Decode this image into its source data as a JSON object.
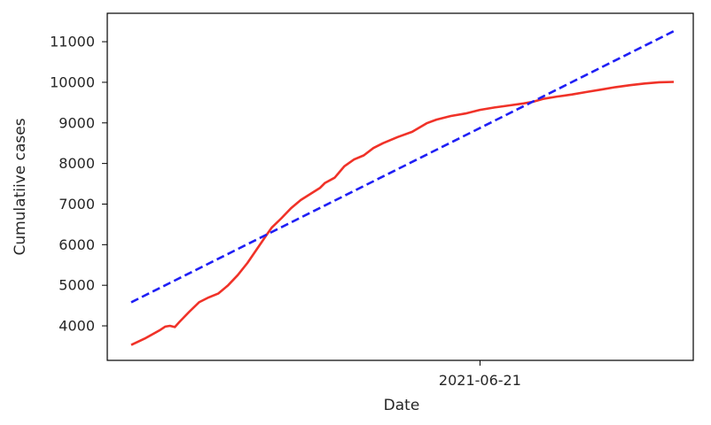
{
  "chart_data": {
    "type": "line",
    "title": "",
    "xlabel": "Date",
    "ylabel": "Cumulatiive cases",
    "x_ticks": [
      {
        "label": "2021-06-21",
        "value": 72
      }
    ],
    "y_ticks": [
      4000,
      5000,
      6000,
      7000,
      8000,
      9000,
      10000,
      11000
    ],
    "ylim": [
      3150,
      11700
    ],
    "grid": false,
    "legend": "none",
    "series": [
      {
        "style": "solid",
        "color": "#f03228",
        "points": [
          [
            0,
            3530
          ],
          [
            3,
            3700
          ],
          [
            6,
            3900
          ],
          [
            7,
            3980
          ],
          [
            8,
            4000
          ],
          [
            9,
            3970
          ],
          [
            10,
            4100
          ],
          [
            12,
            4350
          ],
          [
            14,
            4580
          ],
          [
            16,
            4700
          ],
          [
            18,
            4800
          ],
          [
            20,
            5000
          ],
          [
            22,
            5250
          ],
          [
            24,
            5550
          ],
          [
            26,
            5900
          ],
          [
            28,
            6250
          ],
          [
            29,
            6420
          ],
          [
            31,
            6650
          ],
          [
            33,
            6900
          ],
          [
            35,
            7100
          ],
          [
            37,
            7250
          ],
          [
            39,
            7400
          ],
          [
            40,
            7520
          ],
          [
            42,
            7650
          ],
          [
            44,
            7930
          ],
          [
            46,
            8100
          ],
          [
            48,
            8200
          ],
          [
            50,
            8380
          ],
          [
            52,
            8500
          ],
          [
            55,
            8650
          ],
          [
            58,
            8780
          ],
          [
            61,
            8990
          ],
          [
            63,
            9080
          ],
          [
            66,
            9170
          ],
          [
            69,
            9230
          ],
          [
            72,
            9320
          ],
          [
            75,
            9380
          ],
          [
            78,
            9430
          ],
          [
            81,
            9480
          ],
          [
            83,
            9520
          ],
          [
            85,
            9590
          ],
          [
            88,
            9650
          ],
          [
            91,
            9700
          ],
          [
            94,
            9760
          ],
          [
            97,
            9820
          ],
          [
            100,
            9880
          ],
          [
            103,
            9930
          ],
          [
            106,
            9970
          ],
          [
            109,
            10000
          ],
          [
            112,
            10010
          ]
        ]
      },
      {
        "style": "dashed",
        "color": "#1f1ff5",
        "points": [
          [
            0,
            4580
          ],
          [
            112,
            11260
          ]
        ]
      }
    ]
  }
}
